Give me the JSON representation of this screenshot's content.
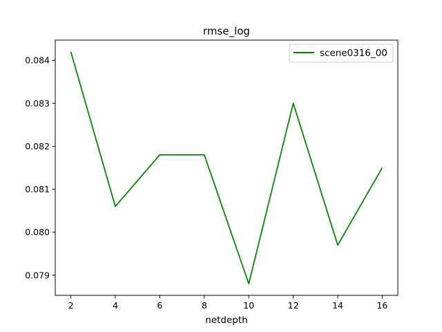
{
  "chart_data": {
    "type": "line",
    "title": "rmse_log",
    "xlabel": "netdepth",
    "ylabel": "",
    "x": [
      2,
      4,
      6,
      8,
      10,
      12,
      14,
      16
    ],
    "series": [
      {
        "name": "scene0316_00",
        "color": "#008000",
        "values": [
          0.0842,
          0.0806,
          0.0818,
          0.0818,
          0.0788,
          0.083,
          0.0797,
          0.0815
        ]
      }
    ],
    "xlim": [
      1.3,
      16.7
    ],
    "ylim": [
      0.07853,
      0.08447
    ],
    "xticks": [
      2,
      4,
      6,
      8,
      10,
      12,
      14,
      16
    ],
    "xtick_labels": [
      "2",
      "4",
      "6",
      "8",
      "10",
      "12",
      "14",
      "16"
    ],
    "yticks": [
      0.079,
      0.08,
      0.081,
      0.082,
      0.083,
      0.084
    ],
    "ytick_labels": [
      "0.079",
      "0.080",
      "0.081",
      "0.082",
      "0.083",
      "0.084"
    ],
    "grid": false,
    "legend_position": "top-right"
  }
}
